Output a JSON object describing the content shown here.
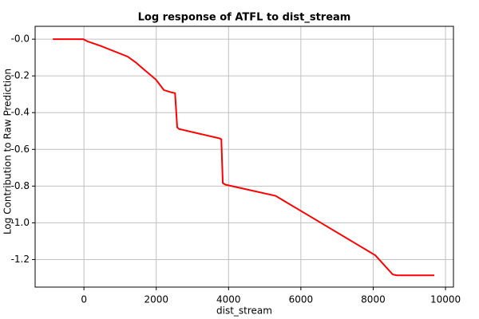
{
  "chart_data": {
    "type": "line",
    "title": "Log response of ATFL to dist_stream",
    "x_label": "dist_stream",
    "y_label": "Log Contribution to Raw Prediction",
    "x": [
      -860,
      -20,
      110,
      440,
      1210,
      1430,
      1660,
      1990,
      2210,
      2430,
      2520,
      2580,
      2630,
      3200,
      3750,
      3800,
      3840,
      3910,
      5300,
      5520,
      6000,
      8060,
      8540,
      8650,
      9690
    ],
    "series": [
      {
        "color": "#ff0000",
        "values": [
          0,
          0,
          -0.013,
          -0.035,
          -0.095,
          -0.126,
          -0.165,
          -0.22,
          -0.277,
          -0.29,
          -0.294,
          -0.48,
          -0.489,
          -0.515,
          -0.54,
          -0.545,
          -0.783,
          -0.792,
          -0.853,
          -0.879,
          -0.935,
          -1.177,
          -1.281,
          -1.286,
          -1.286
        ]
      }
    ],
    "xlim": [
      -1350,
      10220
    ],
    "xticks": [
      0,
      2000,
      4000,
      6000,
      8000,
      10000
    ],
    "ylim": [
      -1.35,
      0.07
    ],
    "yticks": [
      {
        "value": 0,
        "label": "-0.0"
      },
      -0.2,
      -0.4,
      -0.6,
      -0.8,
      {
        "value": -1,
        "label": "-1.0"
      },
      -1.2
    ],
    "grid": true
  }
}
